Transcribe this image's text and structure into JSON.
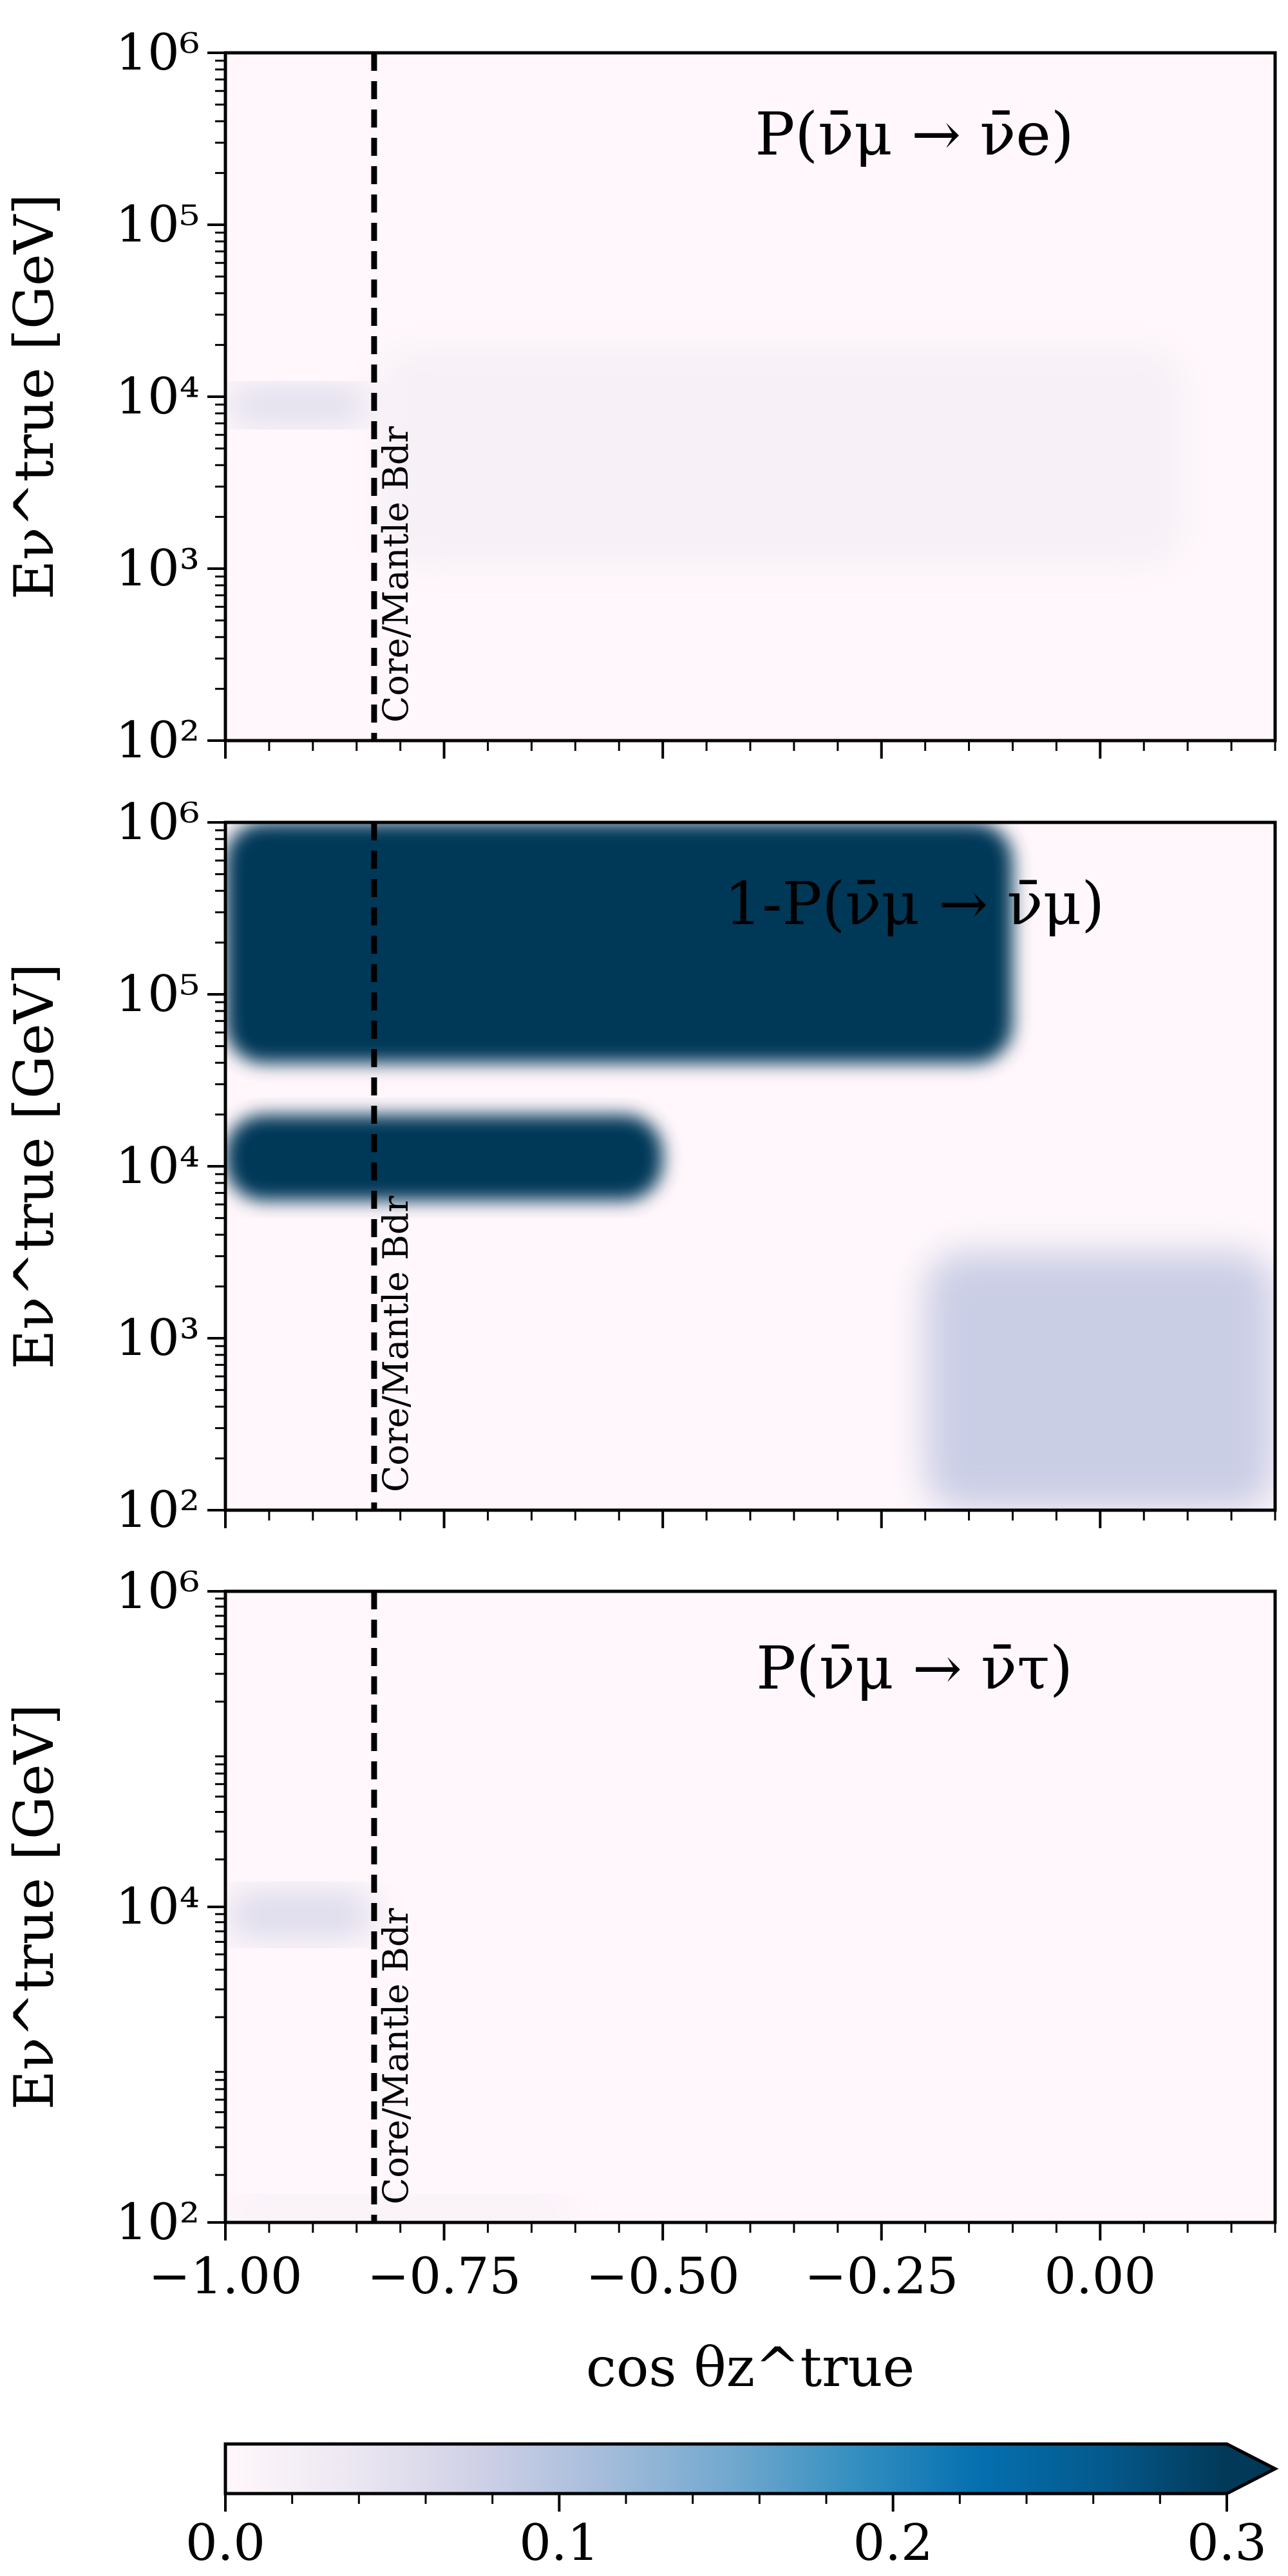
{
  "chart_data": [
    {
      "type": "heatmap",
      "title": "P(ν̄μ → ν̄e)",
      "ylabel": "Eν^true [GeV]",
      "yscale": "log",
      "ylim": [
        100,
        1000000
      ],
      "yticks": [
        100,
        1000,
        10000,
        100000,
        1000000
      ],
      "ytick_labels": [
        "10²",
        "10³",
        "10⁴",
        "10⁵",
        "10⁶"
      ],
      "xlim": [
        -1.0,
        0.2
      ],
      "boundary": {
        "x": -0.83,
        "label": "Core/Mantle Bdr"
      },
      "features": [
        {
          "x": [
            -1.0,
            -0.83
          ],
          "logE": [
            3.85,
            4.05
          ],
          "value": 0.06
        },
        {
          "x": [
            -0.83,
            0.1
          ],
          "logE": [
            3.0,
            4.3
          ],
          "value": 0.015
        }
      ]
    },
    {
      "type": "heatmap",
      "title": "1-P(ν̄μ → ν̄μ)",
      "ylabel": "Eν^true [GeV]",
      "yscale": "log",
      "ylim": [
        100,
        1000000
      ],
      "yticks": [
        100,
        1000,
        10000,
        100000,
        1000000
      ],
      "ytick_labels": [
        "10²",
        "10³",
        "10⁴",
        "10⁵",
        "10⁶"
      ],
      "xlim": [
        -1.0,
        0.2
      ],
      "boundary": {
        "x": -0.83,
        "label": "Core/Mantle Bdr"
      },
      "features": [
        {
          "x": [
            -1.0,
            -0.1
          ],
          "logE": [
            4.6,
            6.0
          ],
          "value": 0.3
        },
        {
          "x": [
            -1.0,
            -0.5
          ],
          "logE": [
            3.8,
            4.3
          ],
          "value": 0.3
        },
        {
          "x": [
            -0.2,
            0.2
          ],
          "logE": [
            2.0,
            3.5
          ],
          "value": 0.08
        }
      ]
    },
    {
      "type": "heatmap",
      "title": "P(ν̄μ → ν̄τ)",
      "ylabel": "Eν^true [GeV]",
      "xlabel": "cos θz^true",
      "yscale": "log",
      "ylim": [
        100,
        1000000
      ],
      "yticks": [
        100,
        10000,
        1000000
      ],
      "ytick_labels": [
        "10²",
        "10⁴",
        "10⁶"
      ],
      "xlim": [
        -1.0,
        0.2
      ],
      "xticks": [
        -1.0,
        -0.75,
        -0.5,
        -0.25,
        0.0
      ],
      "xtick_labels": [
        "−1.00",
        "−0.75",
        "−0.50",
        "−0.25",
        "0.00"
      ],
      "boundary": {
        "x": -0.83,
        "label": "Core/Mantle Bdr"
      },
      "features": [
        {
          "x": [
            -1.0,
            -0.83
          ],
          "logE": [
            3.8,
            4.1
          ],
          "value": 0.06
        },
        {
          "x": [
            -1.0,
            -0.6
          ],
          "logE": [
            2.0,
            2.15
          ],
          "value": 0.02
        }
      ]
    }
  ],
  "colorbar": {
    "min": 0.0,
    "max": 0.3,
    "ticks": [
      0.0,
      0.1,
      0.2,
      0.3
    ],
    "tick_labels": [
      "0.0",
      "0.1",
      "0.2",
      "0.3"
    ],
    "colors": [
      "#fff7fb",
      "#ece7f2",
      "#d0d1e6",
      "#a6bddb",
      "#74a9cf",
      "#3690c0",
      "#0570b0",
      "#045a8d",
      "#023858"
    ],
    "extend": "max"
  }
}
